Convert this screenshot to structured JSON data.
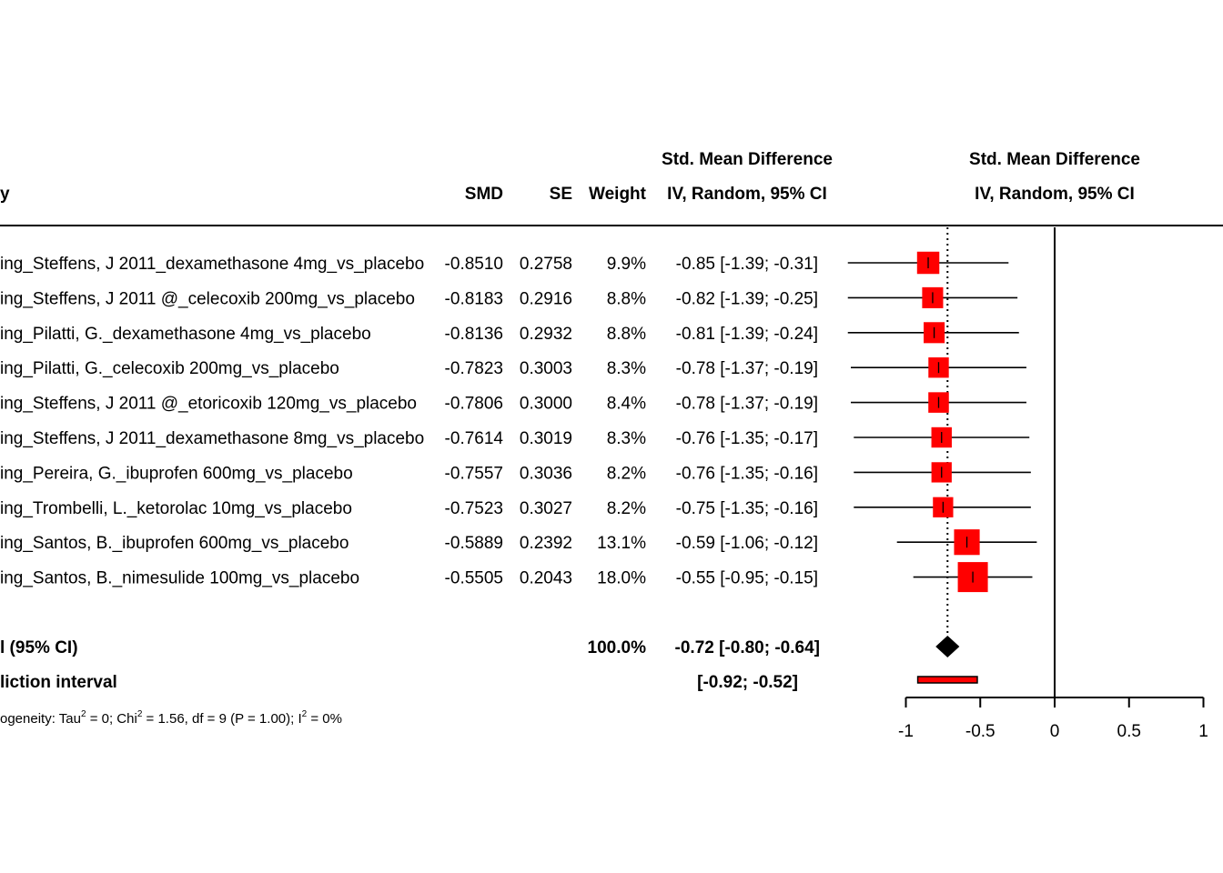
{
  "chart_data": {
    "type": "forest",
    "columns": {
      "study": "y",
      "smd": "SMD",
      "se": "SE",
      "weight": "Weight",
      "ci_header_top": "Std. Mean Difference",
      "ci_header_bottom": "IV, Random, 95% CI",
      "plot_header_top": "Std. Mean Difference",
      "plot_header_bottom": "IV, Random, 95% CI"
    },
    "studies": [
      {
        "label": "ing_Steffens, J 2011_dexamethasone 4mg_vs_placebo",
        "smd": "-0.8510",
        "se": "0.2758",
        "weight": "9.9%",
        "ci_text": "-0.85 [-1.39; -0.31]",
        "est": -0.85,
        "lo": -1.39,
        "hi": -0.31,
        "w": 9.9
      },
      {
        "label": "ing_Steffens, J 2011 @_celecoxib 200mg_vs_placebo",
        "smd": "-0.8183",
        "se": "0.2916",
        "weight": "8.8%",
        "ci_text": "-0.82 [-1.39; -0.25]",
        "est": -0.82,
        "lo": -1.39,
        "hi": -0.25,
        "w": 8.8
      },
      {
        "label": "ing_Pilatti, G._dexamethasone 4mg_vs_placebo",
        "smd": "-0.8136",
        "se": "0.2932",
        "weight": "8.8%",
        "ci_text": "-0.81 [-1.39; -0.24]",
        "est": -0.81,
        "lo": -1.39,
        "hi": -0.24,
        "w": 8.8
      },
      {
        "label": "ing_Pilatti, G._celecoxib 200mg_vs_placebo",
        "smd": "-0.7823",
        "se": "0.3003",
        "weight": "8.3%",
        "ci_text": "-0.78 [-1.37; -0.19]",
        "est": -0.78,
        "lo": -1.37,
        "hi": -0.19,
        "w": 8.3
      },
      {
        "label": "ing_Steffens, J 2011 @_etoricoxib 120mg_vs_placebo",
        "smd": "-0.7806",
        "se": "0.3000",
        "weight": "8.4%",
        "ci_text": "-0.78 [-1.37; -0.19]",
        "est": -0.78,
        "lo": -1.37,
        "hi": -0.19,
        "w": 8.4
      },
      {
        "label": "ing_Steffens, J 2011_dexamethasone 8mg_vs_placebo",
        "smd": "-0.7614",
        "se": "0.3019",
        "weight": "8.3%",
        "ci_text": "-0.76 [-1.35; -0.17]",
        "est": -0.76,
        "lo": -1.35,
        "hi": -0.17,
        "w": 8.3
      },
      {
        "label": "ing_Pereira, G._ibuprofen 600mg_vs_placebo",
        "smd": "-0.7557",
        "se": "0.3036",
        "weight": "8.2%",
        "ci_text": "-0.76 [-1.35; -0.16]",
        "est": -0.76,
        "lo": -1.35,
        "hi": -0.16,
        "w": 8.2
      },
      {
        "label": "ing_Trombelli, L._ketorolac 10mg_vs_placebo",
        "smd": "-0.7523",
        "se": "0.3027",
        "weight": "8.2%",
        "ci_text": "-0.75 [-1.35; -0.16]",
        "est": -0.75,
        "lo": -1.35,
        "hi": -0.16,
        "w": 8.2
      },
      {
        "label": "ing_Santos, B._ibuprofen 600mg_vs_placebo",
        "smd": "-0.5889",
        "se": "0.2392",
        "weight": "13.1%",
        "ci_text": "-0.59 [-1.06; -0.12]",
        "est": -0.59,
        "lo": -1.06,
        "hi": -0.12,
        "w": 13.1
      },
      {
        "label": "ing_Santos, B._nimesulide 100mg_vs_placebo",
        "smd": "-0.5505",
        "se": "0.2043",
        "weight": "18.0%",
        "ci_text": "-0.55 [-0.95; -0.15]",
        "est": -0.55,
        "lo": -0.95,
        "hi": -0.15,
        "w": 18.0
      }
    ],
    "pooled": {
      "label": "l (95% CI)",
      "weight": "100.0%",
      "ci_text": "-0.72 [-0.80; -0.64]",
      "est": -0.72,
      "lo": -0.8,
      "hi": -0.64
    },
    "prediction": {
      "label": "liction interval",
      "ci_text": "[-0.92; -0.52]",
      "lo": -0.92,
      "hi": -0.52
    },
    "heterogeneity": {
      "prefix": "ogeneity: Tau",
      "tau_sup": "2",
      "mid1": " = 0; Chi",
      "chi_sup": "2",
      "mid2": " = 1.56, df = 9 (P = 1.00); I",
      "i_sup": "2",
      "suffix": " = 0%"
    },
    "x_ticks": [
      -1,
      -0.5,
      0,
      0.5,
      1
    ],
    "x_tick_labels": [
      "-1",
      "-0.5",
      "0",
      "0.5",
      "1"
    ],
    "xlim": [
      -1,
      1
    ],
    "null_value": 0,
    "colors": {
      "square": "#ff0000",
      "diamond": "#000000",
      "prediction": "#ff0000",
      "line": "#000000"
    }
  }
}
